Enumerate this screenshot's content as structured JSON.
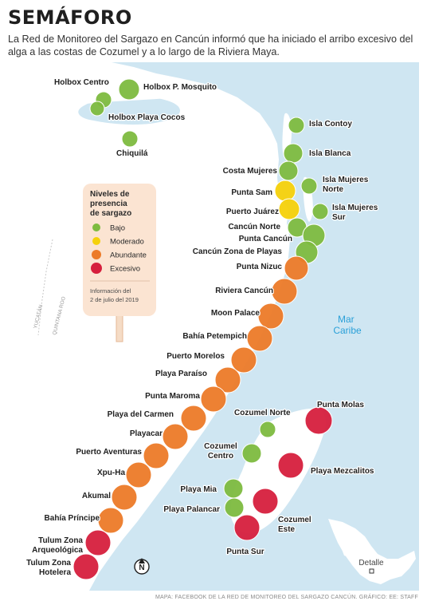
{
  "title": "SEMÁFORO",
  "subtitle": "La Red de Monitoreo del Sargazo en Cancún informó que ha iniciado el arribo excesivo del alga a las costas de Cozumel y a lo largo de la Riviera Maya.",
  "colors": {
    "sea": "#cfe6f2",
    "land": "#ffffff",
    "bajo": "#7dbb3f",
    "moderado": "#f5d10a",
    "abundante": "#ec7a28",
    "excesivo": "#d61f3d",
    "label": "#1f1f1f",
    "sea_label": "#2aa0d8",
    "legend_bg": "#fbe4d2"
  },
  "sea_label": [
    "Mar",
    "Caribe"
  ],
  "region_labels": [
    "YUCATÁN",
    "QUINTANA ROO"
  ],
  "legend": {
    "title": [
      "Niveles de",
      "presencia",
      "de sargazo"
    ],
    "items": [
      {
        "level": "bajo",
        "label": "Bajo"
      },
      {
        "level": "moderado",
        "label": "Moderado"
      },
      {
        "level": "abundante",
        "label": "Abundante"
      },
      {
        "level": "excesivo",
        "label": "Excesivo"
      }
    ],
    "note": [
      "Información del",
      "2 de julio del 2019"
    ]
  },
  "inset_label": "Detalle",
  "compass_label": "N",
  "credit": "MAPA: FACEBOOK DE LA RED DE MONITOREO DEL SARGAZO CANCÚN. GRÁFICO: EE: STAFF",
  "locations": [
    {
      "name": [
        "Holbox Centro"
      ],
      "level": "bajo"
    },
    {
      "name": [
        "Holbox P. Mosquito"
      ],
      "level": "bajo"
    },
    {
      "name": [
        "Holbox Playa Cocos"
      ],
      "level": "bajo"
    },
    {
      "name": [
        "Chiquilá"
      ],
      "level": "bajo"
    },
    {
      "name": [
        "Isla Contoy"
      ],
      "level": "bajo"
    },
    {
      "name": [
        "Isla Blanca"
      ],
      "level": "bajo"
    },
    {
      "name": [
        "Costa Mujeres"
      ],
      "level": "bajo"
    },
    {
      "name": [
        "Isla Mujeres",
        "Norte"
      ],
      "level": "bajo"
    },
    {
      "name": [
        "Punta Sam"
      ],
      "level": "moderado"
    },
    {
      "name": [
        "Puerto Juárez"
      ],
      "level": "moderado"
    },
    {
      "name": [
        "Isla Mujeres",
        "Sur"
      ],
      "level": "bajo"
    },
    {
      "name": [
        "Cancún Norte"
      ],
      "level": "bajo"
    },
    {
      "name": [
        "Punta Cancún"
      ],
      "level": "bajo"
    },
    {
      "name": [
        "Cancún Zona de Playas"
      ],
      "level": "bajo"
    },
    {
      "name": [
        "Punta Nizuc"
      ],
      "level": "abundante"
    },
    {
      "name": [
        "Riviera Cancún"
      ],
      "level": "abundante"
    },
    {
      "name": [
        "Moon Palace"
      ],
      "level": "abundante"
    },
    {
      "name": [
        "Bahía Petempich"
      ],
      "level": "abundante"
    },
    {
      "name": [
        "Puerto Morelos"
      ],
      "level": "abundante"
    },
    {
      "name": [
        "Playa Paraíso"
      ],
      "level": "abundante"
    },
    {
      "name": [
        "Punta Maroma"
      ],
      "level": "abundante"
    },
    {
      "name": [
        "Playa del Carmen"
      ],
      "level": "abundante"
    },
    {
      "name": [
        "Playacar"
      ],
      "level": "abundante"
    },
    {
      "name": [
        "Puerto Aventuras"
      ],
      "level": "abundante"
    },
    {
      "name": [
        "Xpu-Ha"
      ],
      "level": "abundante"
    },
    {
      "name": [
        "Akumal"
      ],
      "level": "abundante"
    },
    {
      "name": [
        "Bahía Príncipe"
      ],
      "level": "abundante"
    },
    {
      "name": [
        "Tulum Zona",
        "Arqueológica"
      ],
      "level": "excesivo"
    },
    {
      "name": [
        "Tulum Zona",
        "Hotelera"
      ],
      "level": "excesivo"
    },
    {
      "name": [
        "Cozumel Norte"
      ],
      "level": "bajo"
    },
    {
      "name": [
        "Punta Molas"
      ],
      "level": "excesivo"
    },
    {
      "name": [
        "Cozumel",
        "Centro"
      ],
      "level": "bajo"
    },
    {
      "name": [
        "Playa Mezcalitos"
      ],
      "level": "excesivo"
    },
    {
      "name": [
        "Playa Mia"
      ],
      "level": "bajo"
    },
    {
      "name": [
        "Playa Palancar"
      ],
      "level": "bajo"
    },
    {
      "name": [
        "Cozumel",
        "Este"
      ],
      "level": "excesivo"
    },
    {
      "name": [
        "Punta Sur"
      ],
      "level": "excesivo"
    }
  ]
}
